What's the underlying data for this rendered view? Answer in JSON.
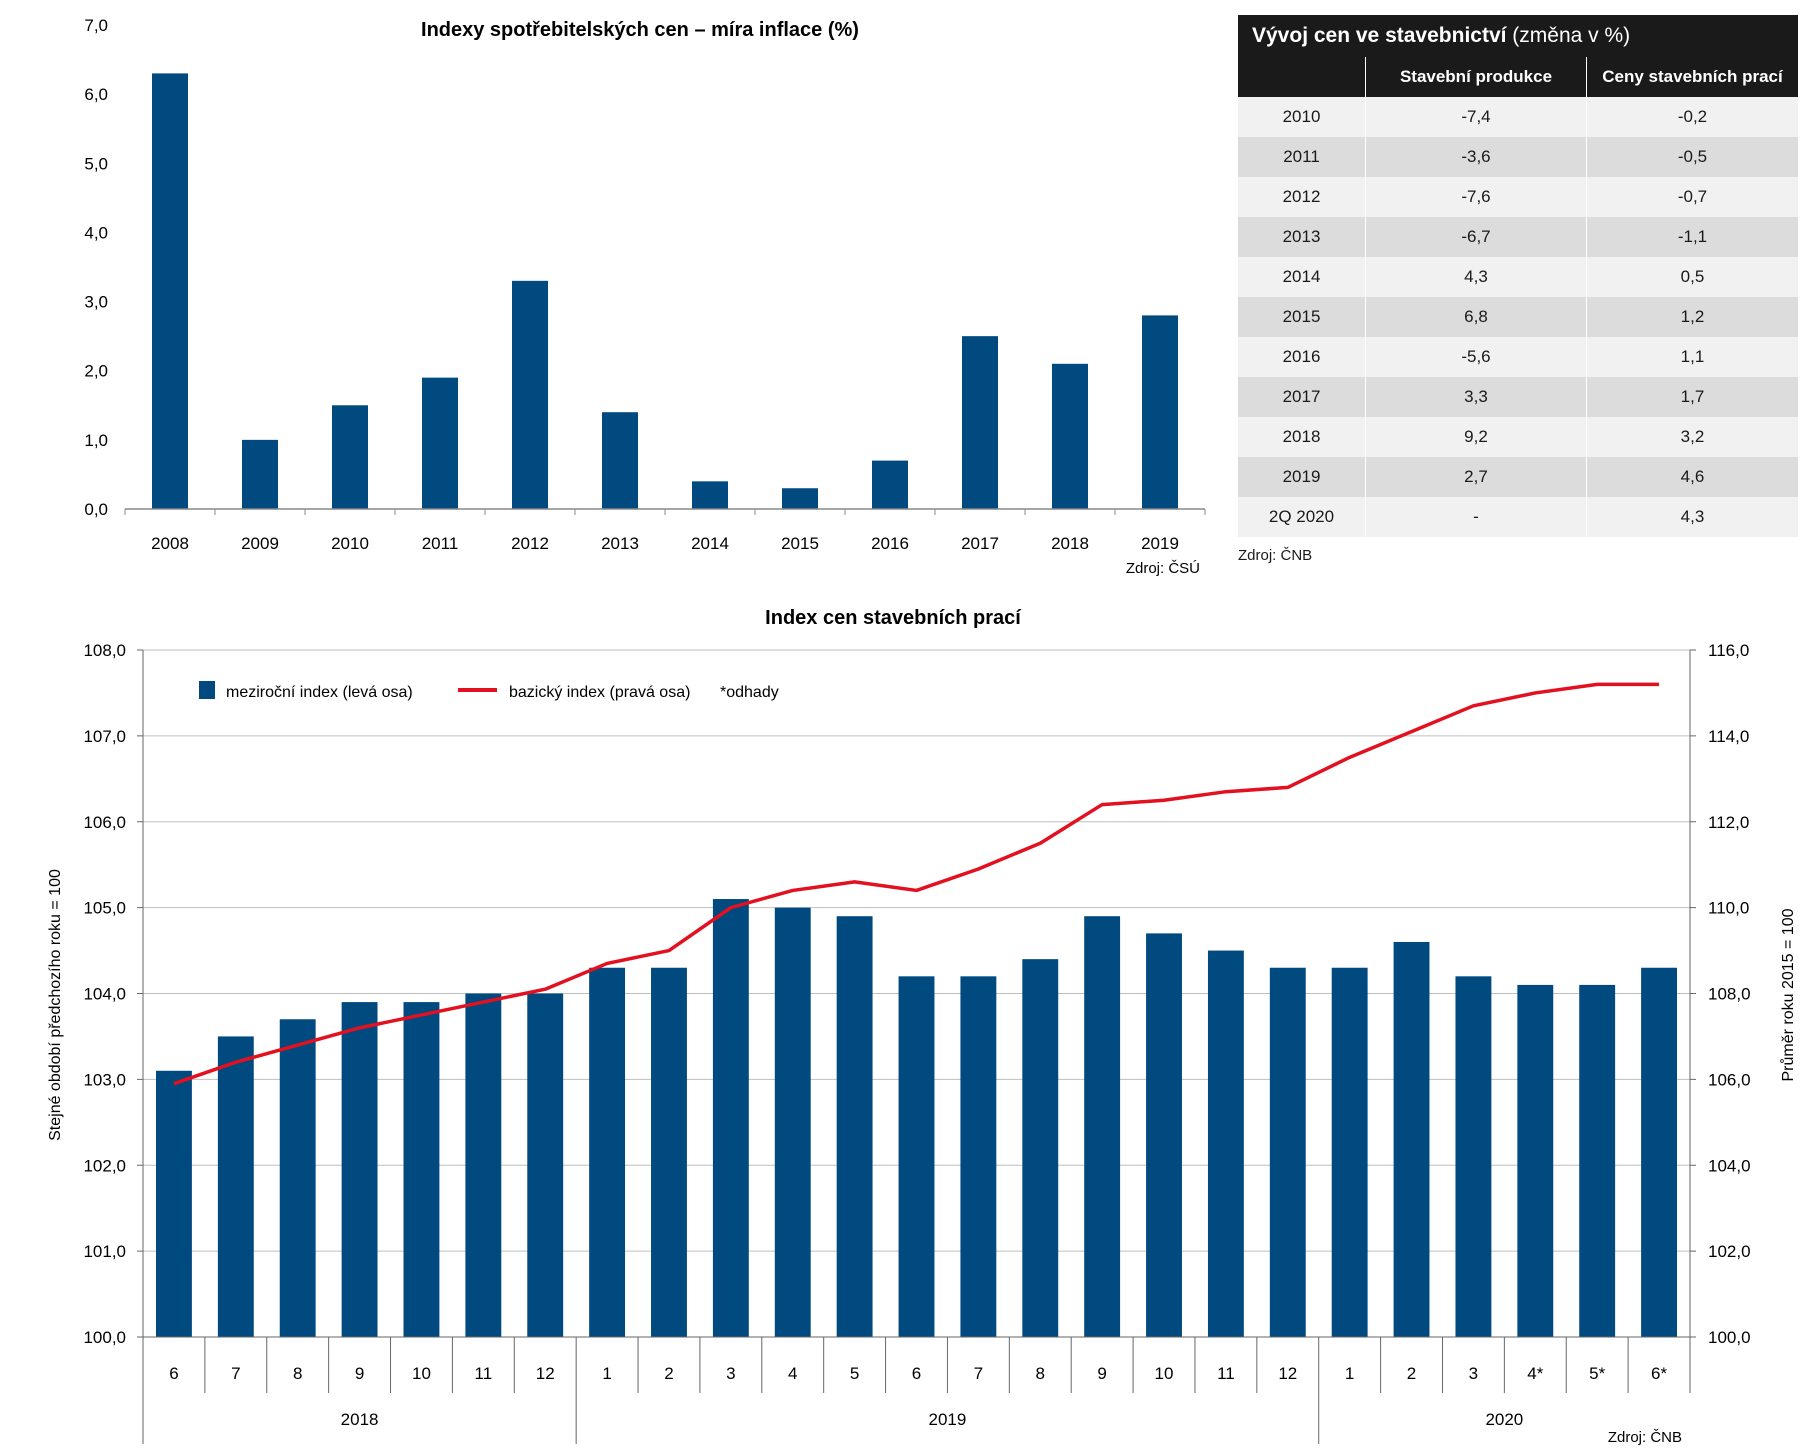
{
  "cpi_source": "Zdroj: ČSÚ",
  "index_source": "Zdroj: ČNB",
  "construction_table": {
    "title_bold": "Vývoj cen ve stavebnictví",
    "title_rest": " (změna v %)",
    "columns": [
      "",
      "Stavební produkce",
      "Ceny stavebních prací"
    ],
    "rows": [
      [
        "2010",
        "-7,4",
        "-0,2"
      ],
      [
        "2011",
        "-3,6",
        "-0,5"
      ],
      [
        "2012",
        "-7,6",
        "-0,7"
      ],
      [
        "2013",
        "-6,7",
        "-1,1"
      ],
      [
        "2014",
        "4,3",
        "0,5"
      ],
      [
        "2015",
        "6,8",
        "1,2"
      ],
      [
        "2016",
        "-5,6",
        "1,1"
      ],
      [
        "2017",
        "3,3",
        "1,7"
      ],
      [
        "2018",
        "9,2",
        "3,2"
      ],
      [
        "2019",
        "2,7",
        "4,6"
      ],
      [
        "2Q 2020",
        "-",
        "4,3"
      ]
    ],
    "source": "Zdroj: ČNB"
  },
  "chart_data": [
    {
      "type": "bar",
      "title": "Indexy spotřebitelských cen – míra inflace (%)",
      "categories": [
        "2008",
        "2009",
        "2010",
        "2011",
        "2012",
        "2013",
        "2014",
        "2015",
        "2016",
        "2017",
        "2018",
        "2019"
      ],
      "values": [
        6.3,
        1.0,
        1.5,
        1.9,
        3.3,
        1.4,
        0.4,
        0.3,
        0.7,
        2.5,
        2.1,
        2.8
      ],
      "ylim": [
        0,
        7
      ],
      "yticks": [
        "0,0",
        "1,0",
        "2,0",
        "3,0",
        "4,0",
        "5,0",
        "6,0",
        "7,0"
      ],
      "bar_color": "#004a80",
      "grid": false
    },
    {
      "type": "bar+line",
      "title": "Index cen stavebních prací",
      "categories": [
        "6",
        "7",
        "8",
        "9",
        "10",
        "11",
        "12",
        "1",
        "2",
        "3",
        "4",
        "5",
        "6",
        "7",
        "8",
        "9",
        "10",
        "11",
        "12",
        "1",
        "2",
        "3",
        "4*",
        "5*",
        "6*"
      ],
      "year_groups": [
        {
          "label": "2018",
          "count": 7
        },
        {
          "label": "2019",
          "count": 12
        },
        {
          "label": "2020",
          "count": 6
        }
      ],
      "series": [
        {
          "name": "meziroční index (levá osa)",
          "type": "bar",
          "axis": "left",
          "color": "#004a80",
          "values": [
            103.1,
            103.5,
            103.7,
            103.9,
            103.9,
            104.0,
            104.0,
            104.3,
            104.3,
            105.1,
            105.0,
            104.9,
            104.2,
            104.2,
            104.4,
            104.9,
            104.7,
            104.5,
            104.3,
            104.3,
            104.6,
            104.2,
            104.1,
            104.1,
            104.3
          ]
        },
        {
          "name": "bazický index (pravá osa)",
          "type": "line",
          "axis": "right",
          "color": "#e3101f",
          "values": [
            105.9,
            106.4,
            106.8,
            107.2,
            107.5,
            107.8,
            108.1,
            108.7,
            109.0,
            110.0,
            110.4,
            110.6,
            110.4,
            110.9,
            111.5,
            112.4,
            112.5,
            112.7,
            112.8,
            113.5,
            114.1,
            114.7,
            115.0,
            115.2,
            115.2
          ]
        }
      ],
      "legend_note": "*odhady",
      "ylabel_left": "Stejné období předchozího roku = 100",
      "ylabel_right": "Průměr roku 2015 = 100",
      "ylim_left": [
        100,
        108
      ],
      "ylim_right": [
        100,
        116
      ],
      "yticks_left": [
        "100,0",
        "101,0",
        "102,0",
        "103,0",
        "104,0",
        "105,0",
        "106,0",
        "107,0",
        "108,0"
      ],
      "yticks_right": [
        "100,0",
        "102,0",
        "104,0",
        "106,0",
        "108,0",
        "110,0",
        "112,0",
        "114,0",
        "116,0"
      ],
      "grid": true,
      "legend_position": "top-left"
    }
  ]
}
